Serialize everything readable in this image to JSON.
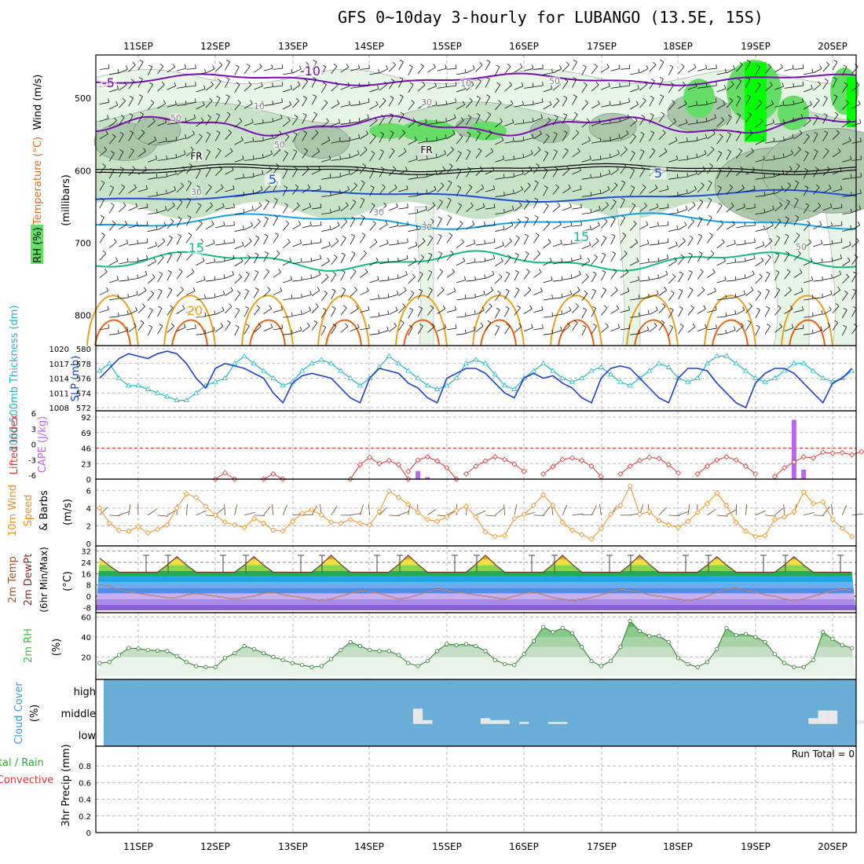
{
  "title": "GFS 0~10day 3-hourly for LUBANGO (13.5E, 15S)",
  "dates": [
    "11SEP",
    "12SEP",
    "13SEP",
    "14SEP",
    "15SEP",
    "16SEP",
    "17SEP",
    "18SEP",
    "19SEP",
    "20SEP"
  ],
  "colors": {
    "rh_light": "#e6f5e6",
    "rh_mid": "#c8e2c8",
    "rh_dark": "#a6c4a6",
    "rh_bright": "#66dd66",
    "rh_neon": "#00ff00",
    "t_purple": "#7a0fb4",
    "t_blue": "#1e4fd8",
    "t_lblue": "#16a0e6",
    "t_teal": "#10bb88",
    "t_orange": "#e8a020",
    "t_dorange": "#e86010",
    "slp": "#1e3ecc",
    "thick": "#22b7c8",
    "li": "#dd3333",
    "cape": "#bb66ee",
    "wind": "#f28c1e",
    "rh2m": "#44bb44",
    "cloud": "#6aaed8",
    "cloudfill": "#e8e8e8"
  },
  "panels": {
    "upper": {
      "ylabel_wind": "Wind (m/s)",
      "ylabel_temp": "Temperature (°C)",
      "ylabel_rh": "RH (%)",
      "ylabel_units": "(millibars)",
      "yticks": [
        "500",
        "600",
        "700",
        "800"
      ],
      "contour_labels": [
        "-10",
        "-5",
        "5",
        "5",
        "15",
        "15",
        "20",
        "FR",
        "FR",
        "10",
        "10",
        "30",
        "30",
        "30",
        "30",
        "50",
        "50",
        "50",
        "50"
      ]
    },
    "slp": {
      "ylabel_thick": "1000-500mb Thickness (dm)",
      "ylabel_slp": "SLP (mb)",
      "left_ticks": [
        "580",
        "578",
        "576",
        "574",
        "572"
      ],
      "right_ticks": [
        "1020",
        "1017",
        "1014",
        "1011",
        "1008"
      ]
    },
    "cape": {
      "ylabel_li": "Lifted Index",
      "ylabel_cape": "CAPE (J/kg)",
      "left_ticks": [
        "-6",
        "-3",
        "0",
        "3",
        "6"
      ],
      "right_ticks": [
        "92",
        "69",
        "46",
        "23",
        "0"
      ]
    },
    "wind": {
      "ylabel_a": "10m Wind",
      "ylabel_b": "Speed",
      "ylabel_c": "& Barbs",
      "units": "(m/s)",
      "yticks": [
        "6",
        "4",
        "2",
        "0"
      ]
    },
    "temp": {
      "ylabel_a": "2m Temp",
      "ylabel_b": "2m DewPt",
      "ylabel_c": "(6hr Min/Max)",
      "units": "(°C)",
      "yticks": [
        "32",
        "24",
        "16",
        "8",
        "0",
        "-8"
      ]
    },
    "rh": {
      "ylabel": "2m RH",
      "units": "(%)",
      "yticks": [
        "60",
        "40",
        "20"
      ]
    },
    "cloud": {
      "ylabel": "Cloud Cover",
      "units": "(%)",
      "levels": [
        "high",
        "middle",
        "low"
      ]
    },
    "precip": {
      "ylabel_a": "Total / Rain",
      "ylabel_b": "Convective",
      "ylabel_c": "3hr Precip (mm)",
      "yticks": [
        "0.8",
        "0.6",
        "0.4",
        "0.2",
        "0"
      ],
      "run_total": "Run Total = 0"
    }
  },
  "chart_data": [
    {
      "type": "line",
      "name": "Sea level pressure and 1000-500mb thickness",
      "x_start": "10SEP 12Z",
      "x_step_hours": 3,
      "ylim_slp": [
        1008,
        1020
      ],
      "ylim_thickness": [
        572,
        580
      ],
      "series": [
        {
          "name": "SLP (mb)",
          "values": [
            1014,
            1016,
            1018,
            1019,
            1018.5,
            1018,
            1019,
            1019.5,
            1019,
            1017,
            1014,
            1012,
            1016,
            1017,
            1016.5,
            1016,
            1015,
            1014,
            1011,
            1009,
            1013,
            1014.5,
            1015,
            1014.5,
            1014,
            1012,
            1010,
            1009,
            1014,
            1016,
            1015.5,
            1015,
            1013,
            1012,
            1010,
            1009,
            1014,
            1015,
            1016,
            1016,
            1015,
            1013,
            1011,
            1010,
            1014,
            1015,
            1014,
            1014.5,
            1013,
            1012,
            1010,
            1009,
            1014,
            1016,
            1016.5,
            1016,
            1014,
            1012,
            1010,
            1009,
            1014,
            1016,
            1016,
            1015.5,
            1013,
            1011,
            1009,
            1008,
            1013,
            1015,
            1016,
            1016,
            1015,
            1013,
            1011,
            1009,
            1013,
            1014,
            1016,
            1014,
            1013,
            1012,
            1010,
            1009,
            1014,
            1016,
            1016.5,
            1016,
            1015,
            1013,
            1011,
            1010,
            1014,
            1015,
            1016,
            1016.5,
            1016,
            1015,
            1014,
            1013,
            1012
          ]
        },
        {
          "name": "Thickness (dm)",
          "values": [
            577,
            578,
            576,
            575,
            575,
            574.5,
            574,
            573.5,
            573,
            573,
            574,
            575,
            575.5,
            576,
            578,
            579,
            578,
            577,
            576,
            575,
            575.5,
            577,
            578,
            578.5,
            578,
            577,
            576,
            575,
            576,
            577.5,
            579,
            578,
            577,
            576,
            575,
            574.5,
            575,
            576,
            578,
            578.5,
            578,
            576.5,
            575,
            574.5,
            576,
            577,
            578,
            577,
            576,
            575.5,
            576,
            577,
            577.5,
            576.5,
            575.5,
            575,
            576,
            577,
            578,
            577.5,
            576,
            575.5,
            576,
            578,
            579,
            579,
            578,
            577,
            576,
            575.5,
            576,
            577,
            578,
            578,
            577,
            576,
            575.5,
            576,
            577,
            578,
            578.5,
            578,
            577,
            576,
            575.5,
            576,
            577,
            578,
            579,
            578,
            577,
            576,
            575.5,
            576,
            577,
            577,
            576,
            576,
            577
          ]
        }
      ]
    },
    {
      "type": "bar",
      "name": "CAPE and Lifted Index",
      "x_start": "10SEP 12Z",
      "x_step_hours": 3,
      "ylim_cape": [
        0,
        92
      ],
      "ylim_li": [
        -6,
        6
      ],
      "series": [
        {
          "name": "CAPE (J/kg)",
          "bars": [
            {
              "i": 33,
              "v": 12
            },
            {
              "i": 34,
              "v": 3
            },
            {
              "i": 72,
              "v": 88
            },
            {
              "i": 73,
              "v": 14
            }
          ]
        },
        {
          "name": "Lifted Index",
          "segments": [
            [
              12,
              [
                6,
                4.8,
                6
              ]
            ],
            [
              17,
              [
                6,
                5,
                6
              ]
            ],
            [
              26,
              [
                6,
                3.2,
                1.8,
                3,
                2.4,
                3.2,
                6
              ]
            ],
            [
              32,
              [
                4.5,
                2.3,
                1.7,
                2.5,
                3.8,
                6
              ]
            ],
            [
              38,
              [
                5,
                3.5,
                2.5,
                1.7,
                2.2,
                3.1,
                4.5
              ]
            ],
            [
              46,
              [
                5,
                3.6,
                2.2,
                1.9,
                2.4,
                3.5,
                5.5
              ]
            ],
            [
              54,
              [
                5,
                3.5,
                2.4,
                1.8,
                2,
                3.2,
                4.8
              ]
            ],
            [
              62,
              [
                5,
                3.5,
                2.3,
                1.7,
                2.3,
                3.5,
                5
              ]
            ],
            [
              70,
              [
                5.5,
                3.8,
                2.7,
                1.7,
                1.9,
                0.8,
                1,
                0.9,
                1.3,
                0.7,
                0.3,
                -0.6
              ]
            ]
          ]
        }
      ]
    },
    {
      "type": "line",
      "name": "10m wind speed",
      "x_start": "10SEP 12Z",
      "x_step_hours": 3,
      "ylim": [
        0,
        7
      ],
      "series": [
        {
          "name": "Wind speed (m/s)",
          "values": [
            4,
            2.3,
            1.5,
            1.4,
            1.9,
            1.2,
            1.6,
            2.1,
            4,
            5.6,
            5.2,
            4.2,
            3.2,
            2.4,
            2.1,
            1.8,
            2.8,
            2.3,
            1.5,
            1.4,
            2.5,
            3.4,
            3.8,
            3.2,
            2.4,
            2.3,
            2.7,
            2.3,
            2.1,
            3.6,
            5.9,
            5.2,
            4.4,
            3.5,
            2.7,
            2.5,
            3,
            3.7,
            4.2,
            3,
            1.3,
            0.8,
            0.9,
            2.8,
            3.3,
            4.3,
            5.5,
            4.3,
            2.4,
            1.5,
            1,
            0.5,
            1.7,
            3.3,
            4.3,
            6.5,
            3.3,
            3.6,
            2.6,
            2.1,
            1.8,
            2.5,
            3.5,
            4.5,
            5.7,
            4.3,
            2.4,
            1.4,
            0.8,
            0.9,
            2.7,
            3,
            3.6,
            5.8,
            4.5,
            4.7,
            2.7,
            1.7,
            0.8,
            1.3,
            2.4,
            2.6,
            3,
            5.4,
            4.8,
            5.5,
            4.5,
            3.6,
            1.5,
            0.5,
            0.6,
            1.2,
            2.1,
            3.2,
            3.8,
            3.3,
            2.4,
            1.2,
            0.6,
            1,
            1.4
          ]
        }
      ]
    },
    {
      "type": "area",
      "name": "2m temperature and dew point",
      "x_start": "10SEP 12Z",
      "x_step_hours": 3,
      "ylim": [
        -10,
        34
      ],
      "daily_max_c": [
        27,
        28,
        28,
        29,
        29,
        29,
        29,
        29,
        28,
        28
      ],
      "night_min_c": 17,
      "dewpoint_c": [
        8,
        7,
        5,
        3,
        2,
        1,
        0,
        -1,
        -1,
        1,
        2,
        1,
        0,
        -1,
        -2,
        -1,
        0,
        2,
        3,
        1,
        0,
        -1,
        -2,
        -3,
        -2,
        0,
        2,
        4,
        3,
        2,
        0,
        -2,
        -1,
        1,
        3,
        5,
        4,
        3,
        2,
        1,
        0,
        -1,
        -2,
        0,
        2,
        3,
        1,
        -1,
        -2,
        -3,
        -2,
        -1,
        1,
        3,
        5,
        4,
        3,
        1,
        0,
        -1,
        -2,
        -3,
        -2,
        0,
        3,
        5,
        6,
        4,
        3,
        1,
        0,
        -2,
        -3,
        -2,
        0,
        2,
        4,
        5,
        4,
        3,
        2,
        1,
        0,
        -1,
        0,
        2,
        3,
        4,
        5,
        5,
        4,
        3,
        2,
        3,
        4,
        4,
        4,
        4,
        4
      ]
    },
    {
      "type": "area",
      "name": "2m relative humidity",
      "x_start": "10SEP 12Z",
      "x_step_hours": 3,
      "ylim": [
        0,
        62
      ],
      "series": [
        {
          "name": "2m RH (%)",
          "values": [
            14,
            15,
            22,
            29,
            28.5,
            27,
            26.5,
            26,
            21,
            15,
            11,
            10,
            10,
            19,
            24,
            31,
            28,
            24,
            20,
            17,
            14,
            12,
            10,
            11,
            18,
            27,
            35,
            31,
            27,
            26,
            26,
            22,
            14,
            11,
            16,
            26,
            33,
            32,
            33,
            31,
            26,
            17,
            13,
            12,
            23,
            36,
            50,
            45,
            49,
            44,
            30,
            16,
            11,
            16,
            30,
            56,
            46,
            41,
            41,
            35,
            19,
            13,
            10,
            15,
            28,
            49,
            42,
            43,
            40,
            35,
            23,
            14,
            10,
            10,
            17,
            45,
            38,
            32,
            29,
            26,
            17,
            11,
            10,
            15,
            27,
            57,
            47,
            47,
            41,
            33,
            23,
            17,
            14,
            19,
            40,
            53,
            52,
            52,
            54,
            53,
            42
          ]
        }
      ]
    },
    {
      "type": "bar",
      "name": "Cloud cover",
      "x_start": "10SEP 12Z",
      "x_step_hours": 3,
      "series": [
        {
          "name": "Middle (%)",
          "bars": [
            {
              "i": 33,
              "v": 0.8
            },
            {
              "i": 34,
              "v": 0.2
            },
            {
              "i": 40,
              "v": 0.3
            },
            {
              "i": 41,
              "v": 0.2
            },
            {
              "i": 42,
              "v": 0.2
            },
            {
              "i": 44,
              "v": 0.1
            },
            {
              "i": 47,
              "v": 0.1
            },
            {
              "i": 48,
              "v": 0.1
            },
            {
              "i": 74,
              "v": 0.3
            },
            {
              "i": 75,
              "v": 0.7
            },
            {
              "i": 76,
              "v": 0.7
            },
            {
              "i": 79,
              "v": 0.2
            },
            {
              "i": 80,
              "v": 0.3
            },
            {
              "i": 81,
              "v": 0.7
            },
            {
              "i": 82,
              "v": 0.8
            },
            {
              "i": 83,
              "v": 1
            },
            {
              "i": 84,
              "v": 0.7
            },
            {
              "i": 85,
              "v": 0.5
            },
            {
              "i": 86,
              "v": 0.2
            },
            {
              "i": 87,
              "v": 0.2
            },
            {
              "i": 88,
              "v": 0.1
            },
            {
              "i": 89,
              "v": 0.3
            },
            {
              "i": 90,
              "v": 0.3
            },
            {
              "i": 91,
              "v": 0.6
            },
            {
              "i": 92,
              "v": 0.6
            },
            {
              "i": 93,
              "v": 0.2
            },
            {
              "i": 94,
              "v": 0.7
            },
            {
              "i": 95,
              "v": 0.4
            },
            {
              "i": 96,
              "v": 0.4
            },
            {
              "i": 97,
              "v": 0.3
            }
          ]
        },
        {
          "name": "High (%)",
          "bars": [
            {
              "i": 90,
              "v": 0.1
            },
            {
              "i": 91,
              "v": 0.1
            },
            {
              "i": 92,
              "v": 0.3
            },
            {
              "i": 93,
              "v": 0.5
            },
            {
              "i": 94,
              "v": 0.6
            },
            {
              "i": 95,
              "v": 0.8
            },
            {
              "i": 96,
              "v": 0.9
            },
            {
              "i": 97,
              "v": 0.9
            }
          ]
        }
      ]
    },
    {
      "type": "bar",
      "name": "3hr precipitation",
      "ylim": [
        0,
        1
      ],
      "series": [
        {
          "name": "Total",
          "values": []
        }
      ]
    }
  ]
}
